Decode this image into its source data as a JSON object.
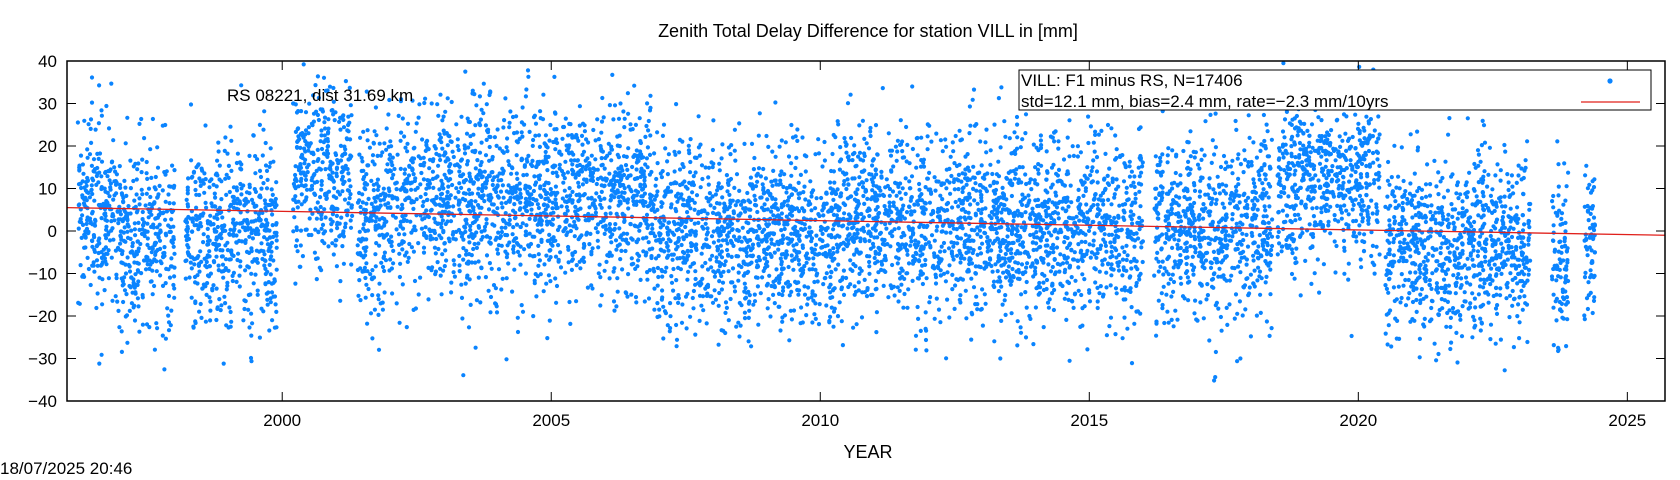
{
  "chart_data": {
    "type": "scatter",
    "title": "Zenith Total Delay Difference for station VILL in [mm]",
    "xlabel": "YEAR",
    "ylabel": "",
    "xlim": [
      1996.0,
      2025.7
    ],
    "ylim": [
      -40,
      40
    ],
    "xticks": [
      2000,
      2005,
      2010,
      2015,
      2020,
      2025
    ],
    "yticks": [
      -40,
      -30,
      -20,
      -10,
      0,
      10,
      20,
      30,
      40
    ],
    "grid": false,
    "legend_position": "top-right",
    "colors": {
      "points": "#0a84ff",
      "trend": "#e0201b",
      "frame": "#000000"
    },
    "annotation": "RS 08221, dist 31.69 km",
    "legend": {
      "line1": "VILL: F1 minus RS, N=17406",
      "line2": "std=12.1 mm, bias=2.4 mm, rate=−2.3 mm/10yrs"
    },
    "series": [
      {
        "kind": "scatter",
        "n": 17406,
        "std": 12.1,
        "clip": [
          -40,
          40
        ],
        "segments": [
          {
            "x": [
              1996.2,
              1997.0
            ],
            "mean": 5
          },
          {
            "x": [
              1997.0,
              1998.0
            ],
            "mean": -2
          },
          {
            "x": [
              1998.2,
              1999.9
            ],
            "mean": 0
          },
          {
            "x": [
              2000.2,
              2001.3
            ],
            "mean": 13
          },
          {
            "x": [
              2001.4,
              2002.1
            ],
            "mean": 4
          },
          {
            "x": [
              2002.1,
              2006.9
            ],
            "mean": 8
          },
          {
            "x": [
              2006.9,
              2010.0
            ],
            "mean": -1
          },
          {
            "x": [
              2010.0,
              2016.0
            ],
            "mean": 2
          },
          {
            "x": [
              2016.2,
              2018.4
            ],
            "mean": 1
          },
          {
            "x": [
              2018.5,
              2020.4
            ],
            "mean": 13
          },
          {
            "x": [
              2020.5,
              2023.2
            ],
            "mean": -4
          },
          {
            "x": [
              2023.6,
              2023.9
            ],
            "mean": -8
          },
          {
            "x": [
              2024.2,
              2024.4
            ],
            "mean": -5
          }
        ]
      },
      {
        "kind": "line",
        "x": [
          1996.0,
          2025.7
        ],
        "y": [
          5.5,
          -1.0
        ]
      }
    ]
  },
  "footer": {
    "timestamp": "18/07/2025 20:46"
  }
}
